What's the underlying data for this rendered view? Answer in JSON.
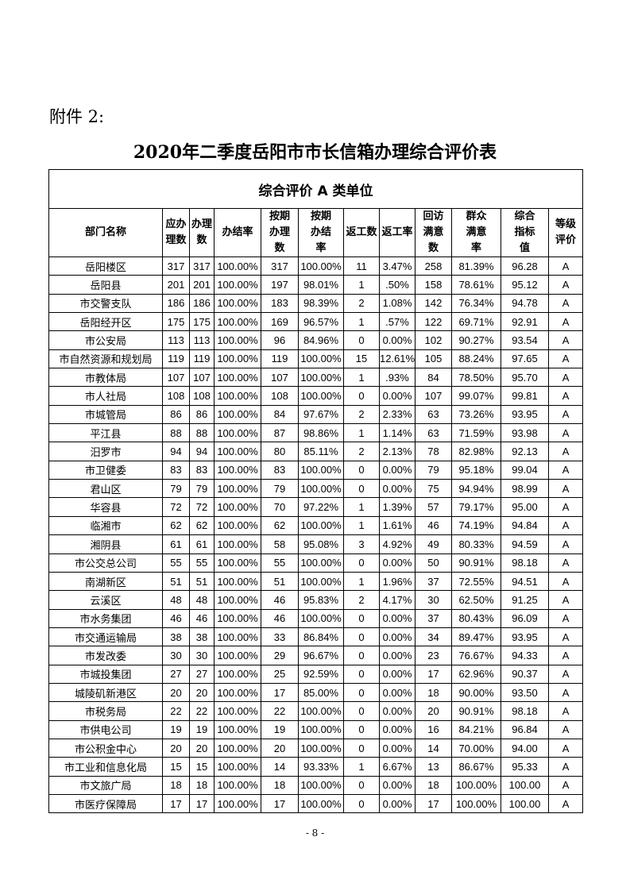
{
  "attachment_label": "附件 2:",
  "title": "2020年二季度岳阳市市长信箱办理综合评价表",
  "category": "综合评价 A 类单位",
  "headers": [
    "部门名称",
    "应办理数",
    "办理数",
    "办结率",
    "按期办理数",
    "按期办结率",
    "返工数",
    "返工率",
    "回访满意数",
    "群众满意率",
    "综合指标值",
    "等级评价"
  ],
  "rows": [
    [
      "岳阳楼区",
      "317",
      "317",
      "100.00%",
      "317",
      "100.00%",
      "11",
      "3.47%",
      "258",
      "81.39%",
      "96.28",
      "A"
    ],
    [
      "岳阳县",
      "201",
      "201",
      "100.00%",
      "197",
      "98.01%",
      "1",
      ".50%",
      "158",
      "78.61%",
      "95.12",
      "A"
    ],
    [
      "市交警支队",
      "186",
      "186",
      "100.00%",
      "183",
      "98.39%",
      "2",
      "1.08%",
      "142",
      "76.34%",
      "94.78",
      "A"
    ],
    [
      "岳阳经开区",
      "175",
      "175",
      "100.00%",
      "169",
      "96.57%",
      "1",
      ".57%",
      "122",
      "69.71%",
      "92.91",
      "A"
    ],
    [
      "市公安局",
      "113",
      "113",
      "100.00%",
      "96",
      "84.96%",
      "0",
      "0.00%",
      "102",
      "90.27%",
      "93.54",
      "A"
    ],
    [
      "市自然资源和规划局",
      "119",
      "119",
      "100.00%",
      "119",
      "100.00%",
      "15",
      "12.61%",
      "105",
      "88.24%",
      "97.65",
      "A"
    ],
    [
      "市教体局",
      "107",
      "107",
      "100.00%",
      "107",
      "100.00%",
      "1",
      ".93%",
      "84",
      "78.50%",
      "95.70",
      "A"
    ],
    [
      "市人社局",
      "108",
      "108",
      "100.00%",
      "108",
      "100.00%",
      "0",
      "0.00%",
      "107",
      "99.07%",
      "99.81",
      "A"
    ],
    [
      "市城管局",
      "86",
      "86",
      "100.00%",
      "84",
      "97.67%",
      "2",
      "2.33%",
      "63",
      "73.26%",
      "93.95",
      "A"
    ],
    [
      "平江县",
      "88",
      "88",
      "100.00%",
      "87",
      "98.86%",
      "1",
      "1.14%",
      "63",
      "71.59%",
      "93.98",
      "A"
    ],
    [
      "汨罗市",
      "94",
      "94",
      "100.00%",
      "80",
      "85.11%",
      "2",
      "2.13%",
      "78",
      "82.98%",
      "92.13",
      "A"
    ],
    [
      "市卫健委",
      "83",
      "83",
      "100.00%",
      "83",
      "100.00%",
      "0",
      "0.00%",
      "79",
      "95.18%",
      "99.04",
      "A"
    ],
    [
      "君山区",
      "79",
      "79",
      "100.00%",
      "79",
      "100.00%",
      "0",
      "0.00%",
      "75",
      "94.94%",
      "98.99",
      "A"
    ],
    [
      "华容县",
      "72",
      "72",
      "100.00%",
      "70",
      "97.22%",
      "1",
      "1.39%",
      "57",
      "79.17%",
      "95.00",
      "A"
    ],
    [
      "临湘市",
      "62",
      "62",
      "100.00%",
      "62",
      "100.00%",
      "1",
      "1.61%",
      "46",
      "74.19%",
      "94.84",
      "A"
    ],
    [
      "湘阴县",
      "61",
      "61",
      "100.00%",
      "58",
      "95.08%",
      "3",
      "4.92%",
      "49",
      "80.33%",
      "94.59",
      "A"
    ],
    [
      "市公交总公司",
      "55",
      "55",
      "100.00%",
      "55",
      "100.00%",
      "0",
      "0.00%",
      "50",
      "90.91%",
      "98.18",
      "A"
    ],
    [
      "南湖新区",
      "51",
      "51",
      "100.00%",
      "51",
      "100.00%",
      "1",
      "1.96%",
      "37",
      "72.55%",
      "94.51",
      "A"
    ],
    [
      "云溪区",
      "48",
      "48",
      "100.00%",
      "46",
      "95.83%",
      "2",
      "4.17%",
      "30",
      "62.50%",
      "91.25",
      "A"
    ],
    [
      "市水务集团",
      "46",
      "46",
      "100.00%",
      "46",
      "100.00%",
      "0",
      "0.00%",
      "37",
      "80.43%",
      "96.09",
      "A"
    ],
    [
      "市交通运输局",
      "38",
      "38",
      "100.00%",
      "33",
      "86.84%",
      "0",
      "0.00%",
      "34",
      "89.47%",
      "93.95",
      "A"
    ],
    [
      "市发改委",
      "30",
      "30",
      "100.00%",
      "29",
      "96.67%",
      "0",
      "0.00%",
      "23",
      "76.67%",
      "94.33",
      "A"
    ],
    [
      "市城投集团",
      "27",
      "27",
      "100.00%",
      "25",
      "92.59%",
      "0",
      "0.00%",
      "17",
      "62.96%",
      "90.37",
      "A"
    ],
    [
      "城陵矶新港区",
      "20",
      "20",
      "100.00%",
      "17",
      "85.00%",
      "0",
      "0.00%",
      "18",
      "90.00%",
      "93.50",
      "A"
    ],
    [
      "市税务局",
      "22",
      "22",
      "100.00%",
      "22",
      "100.00%",
      "0",
      "0.00%",
      "20",
      "90.91%",
      "98.18",
      "A"
    ],
    [
      "市供电公司",
      "19",
      "19",
      "100.00%",
      "19",
      "100.00%",
      "0",
      "0.00%",
      "16",
      "84.21%",
      "96.84",
      "A"
    ],
    [
      "市公积金中心",
      "20",
      "20",
      "100.00%",
      "20",
      "100.00%",
      "0",
      "0.00%",
      "14",
      "70.00%",
      "94.00",
      "A"
    ],
    [
      "市工业和信息化局",
      "15",
      "15",
      "100.00%",
      "14",
      "93.33%",
      "1",
      "6.67%",
      "13",
      "86.67%",
      "95.33",
      "A"
    ],
    [
      "市文旅广局",
      "18",
      "18",
      "100.00%",
      "18",
      "100.00%",
      "0",
      "0.00%",
      "18",
      "100.00%",
      "100.00",
      "A"
    ],
    [
      "市医疗保障局",
      "17",
      "17",
      "100.00%",
      "17",
      "100.00%",
      "0",
      "0.00%",
      "17",
      "100.00%",
      "100.00",
      "A"
    ]
  ],
  "page_number": "- 8 -"
}
